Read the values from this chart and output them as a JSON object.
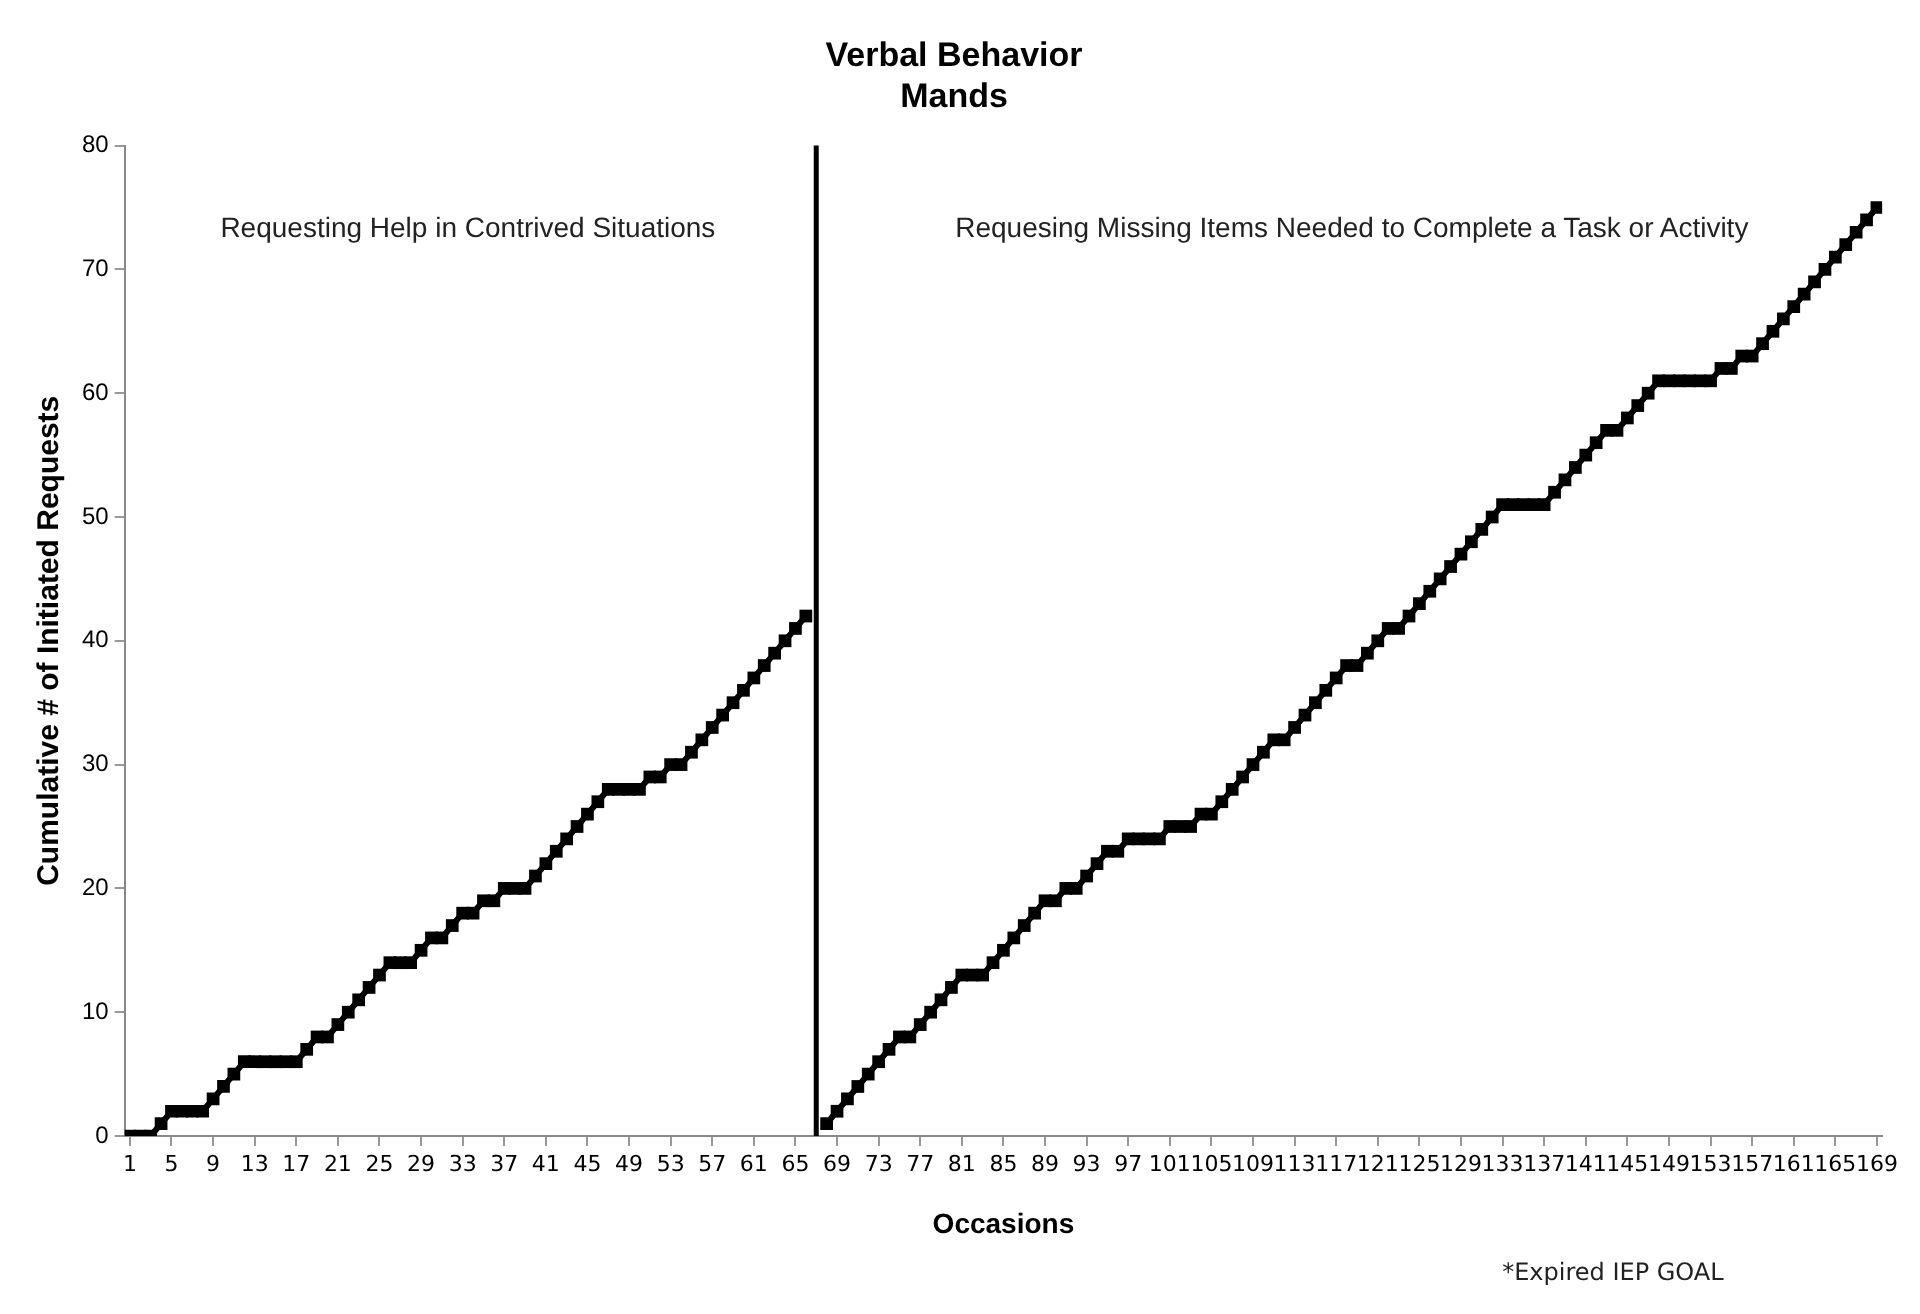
{
  "chart_data": {
    "type": "line",
    "title": "Verbal Behavior",
    "subtitle": "Mands",
    "xlabel": "Occasions",
    "ylabel": "Cumulative # of Initiated Requests",
    "annotations": [
      "Requesting Help in Contrived Situations",
      "Requesing Missing Items Needed to Complete a Task or Activity",
      "*Expired IEP GOAL"
    ],
    "xlim": [
      0.5,
      169.5
    ],
    "xticks": [
      1,
      5,
      9,
      13,
      17,
      21,
      25,
      29,
      33,
      37,
      41,
      45,
      49,
      53,
      57,
      61,
      65,
      69,
      73,
      77,
      81,
      85,
      89,
      93,
      97,
      101,
      105,
      109,
      113,
      117,
      121,
      125,
      129,
      133,
      137,
      141,
      145,
      149,
      153,
      157,
      161,
      165,
      169
    ],
    "ylim": [
      0,
      80
    ],
    "yticks": [
      0,
      10,
      20,
      30,
      40,
      50,
      60,
      70,
      80
    ],
    "grid": false,
    "legend": false,
    "marker": "square",
    "line_style": "solid",
    "ref_lines": [
      {
        "axis": "x",
        "value": 67,
        "color": "#000000"
      }
    ],
    "series": [
      {
        "color": "#000000",
        "x": [
          1,
          2,
          3,
          4,
          5,
          6,
          7,
          8,
          9,
          10,
          11,
          12,
          13,
          14,
          15,
          16,
          17,
          18,
          19,
          20,
          21,
          22,
          23,
          24,
          25,
          26,
          27,
          28,
          29,
          30,
          31,
          32,
          33,
          34,
          35,
          36,
          37,
          38,
          39,
          40,
          41,
          42,
          43,
          44,
          45,
          46,
          47,
          48,
          49,
          50,
          51,
          52,
          53,
          54,
          55,
          56,
          57,
          58,
          59,
          60,
          61,
          62,
          63,
          64,
          65,
          66
        ],
        "values": [
          0,
          0,
          0,
          1,
          2,
          2,
          2,
          2,
          3,
          4,
          5,
          6,
          6,
          6,
          6,
          6,
          6,
          7,
          8,
          8,
          9,
          10,
          11,
          12,
          13,
          14,
          14,
          14,
          15,
          16,
          16,
          17,
          18,
          18,
          19,
          19,
          20,
          20,
          20,
          21,
          22,
          23,
          24,
          25,
          26,
          27,
          28,
          28,
          28,
          28,
          29,
          29,
          30,
          30,
          31,
          32,
          33,
          34,
          35,
          36,
          37,
          38,
          39,
          40,
          41,
          42
        ]
      },
      {
        "color": "#000000",
        "x": [
          68,
          69,
          70,
          71,
          72,
          73,
          74,
          75,
          76,
          77,
          78,
          79,
          80,
          81,
          82,
          83,
          84,
          85,
          86,
          87,
          88,
          89,
          90,
          91,
          92,
          93,
          94,
          95,
          96,
          97,
          98,
          99,
          100,
          101,
          102,
          103,
          104,
          105,
          106,
          107,
          108,
          109,
          110,
          111,
          112,
          113,
          114,
          115,
          116,
          117,
          118,
          119,
          120,
          121,
          122,
          123,
          124,
          125,
          126,
          127,
          128,
          129,
          130,
          131,
          132,
          133,
          134,
          135,
          136,
          137,
          138,
          139,
          140,
          141,
          142,
          143,
          144,
          145,
          146,
          147,
          148,
          149,
          150,
          151,
          152,
          153,
          154,
          155,
          156,
          157,
          158,
          159,
          160,
          161,
          162,
          163,
          164,
          165,
          166,
          167,
          168,
          169
        ],
        "values": [
          1,
          2,
          3,
          4,
          5,
          6,
          7,
          8,
          8,
          9,
          10,
          11,
          12,
          13,
          13,
          13,
          14,
          15,
          16,
          17,
          18,
          19,
          19,
          20,
          20,
          21,
          22,
          23,
          23,
          24,
          24,
          24,
          24,
          25,
          25,
          25,
          26,
          26,
          27,
          28,
          29,
          30,
          31,
          32,
          32,
          33,
          34,
          35,
          36,
          37,
          38,
          38,
          39,
          40,
          41,
          41,
          42,
          43,
          44,
          45,
          46,
          47,
          48,
          49,
          50,
          51,
          51,
          51,
          51,
          51,
          52,
          53,
          54,
          55,
          56,
          57,
          57,
          58,
          59,
          60,
          61,
          61,
          61,
          61,
          61,
          61,
          62,
          62,
          63,
          63,
          64,
          65,
          66,
          67,
          68,
          69,
          70,
          71,
          72,
          73,
          74,
          75
        ]
      }
    ]
  }
}
